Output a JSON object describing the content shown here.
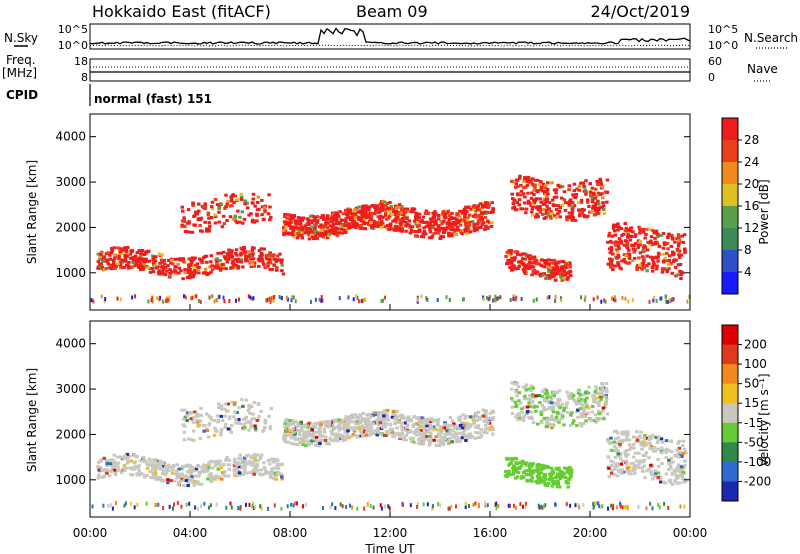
{
  "header": {
    "title": "Hokkaido East (fitACF)",
    "beam": "Beam 09",
    "date": "24/Oct/2019"
  },
  "status_panels": {
    "nsky_label": "N.Sky",
    "nsearch_label": "N.Search",
    "noise_ticks": [
      "10^5",
      "10^0"
    ],
    "freq_label": "Freq.",
    "freq_unit": "[MHz]",
    "freq_ticks": [
      "18",
      "8"
    ],
    "nave_label": "Nave",
    "nave_ticks": [
      "60",
      "0"
    ],
    "cpid_label": "CPID",
    "cpid_text": "normal (fast) 151"
  },
  "chart_data": [
    {
      "type": "heatmap",
      "name": "power",
      "ylabel": "Slant Range [km]",
      "y_ticks": [
        "1000",
        "2000",
        "3000",
        "4000"
      ],
      "ylim": [
        180,
        4500
      ],
      "colorbar_label": "Power [dB]",
      "colorbar_ticks": [
        "4",
        "8",
        "12",
        "16",
        "20",
        "24",
        "28"
      ],
      "colors": [
        "#1a1aff",
        "#3050c8",
        "#3a8a5a",
        "#5aa04a",
        "#e0c020",
        "#f08a1e",
        "#e8401a",
        "#ee1c1c"
      ]
    },
    {
      "type": "heatmap",
      "name": "velocity",
      "ylabel": "Slant Range [km]",
      "y_ticks": [
        "1000",
        "2000",
        "3000",
        "4000"
      ],
      "ylim": [
        180,
        4500
      ],
      "colorbar_label": "Velocity [m s⁻¹]",
      "colorbar_ticks": [
        "200",
        "100",
        "50",
        "15",
        "-15",
        "-50",
        "-100",
        "-200"
      ],
      "colors": [
        "#1a2ab0",
        "#2f6ad0",
        "#2f8a4a",
        "#66cc33",
        "#c8c8c0",
        "#f0c020",
        "#f08a1e",
        "#e03a1e",
        "#dd0000"
      ]
    }
  ],
  "time_axis": {
    "ticks": [
      "00:00",
      "04:00",
      "08:00",
      "12:00",
      "16:00",
      "20:00",
      "00:00"
    ],
    "xlabel": "Time UT"
  }
}
